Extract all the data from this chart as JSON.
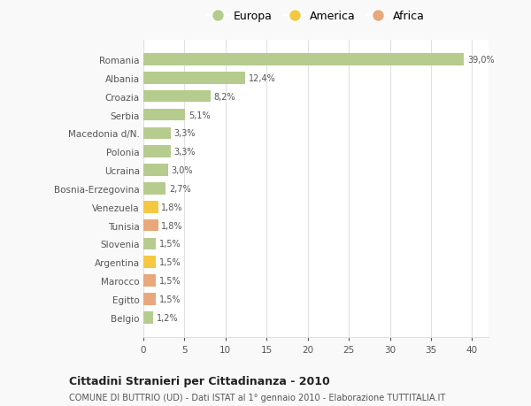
{
  "countries": [
    "Romania",
    "Albania",
    "Croazia",
    "Serbia",
    "Macedonia d/N.",
    "Polonia",
    "Ucraina",
    "Bosnia-Erzegovina",
    "Venezuela",
    "Tunisia",
    "Slovenia",
    "Argentina",
    "Marocco",
    "Egitto",
    "Belgio"
  ],
  "values": [
    39.0,
    12.4,
    8.2,
    5.1,
    3.3,
    3.3,
    3.0,
    2.7,
    1.8,
    1.8,
    1.5,
    1.5,
    1.5,
    1.5,
    1.2
  ],
  "labels": [
    "39,0%",
    "12,4%",
    "8,2%",
    "5,1%",
    "3,3%",
    "3,3%",
    "3,0%",
    "2,7%",
    "1,8%",
    "1,8%",
    "1,5%",
    "1,5%",
    "1,5%",
    "1,5%",
    "1,2%"
  ],
  "categories": [
    "Europa",
    "Europa",
    "Europa",
    "Europa",
    "Europa",
    "Europa",
    "Europa",
    "Europa",
    "America",
    "Africa",
    "Europa",
    "America",
    "Africa",
    "Africa",
    "Europa"
  ],
  "colors": {
    "Europa": "#b5cc8e",
    "America": "#f5c842",
    "Africa": "#e8a87c"
  },
  "title": "Cittadini Stranieri per Cittadinanza - 2010",
  "subtitle": "COMUNE DI BUTTRIO (UD) - Dati ISTAT al 1° gennaio 2010 - Elaborazione TUTTITALIA.IT",
  "xlim": [
    0,
    42
  ],
  "xticks": [
    0,
    5,
    10,
    15,
    20,
    25,
    30,
    35,
    40
  ],
  "background_color": "#f9f9f9",
  "plot_bg_color": "#ffffff",
  "grid_color": "#e0e0e0",
  "legend_marker_color_europa": "#b5cc8e",
  "legend_marker_color_america": "#f5c842",
  "legend_marker_color_africa": "#e8a87c"
}
